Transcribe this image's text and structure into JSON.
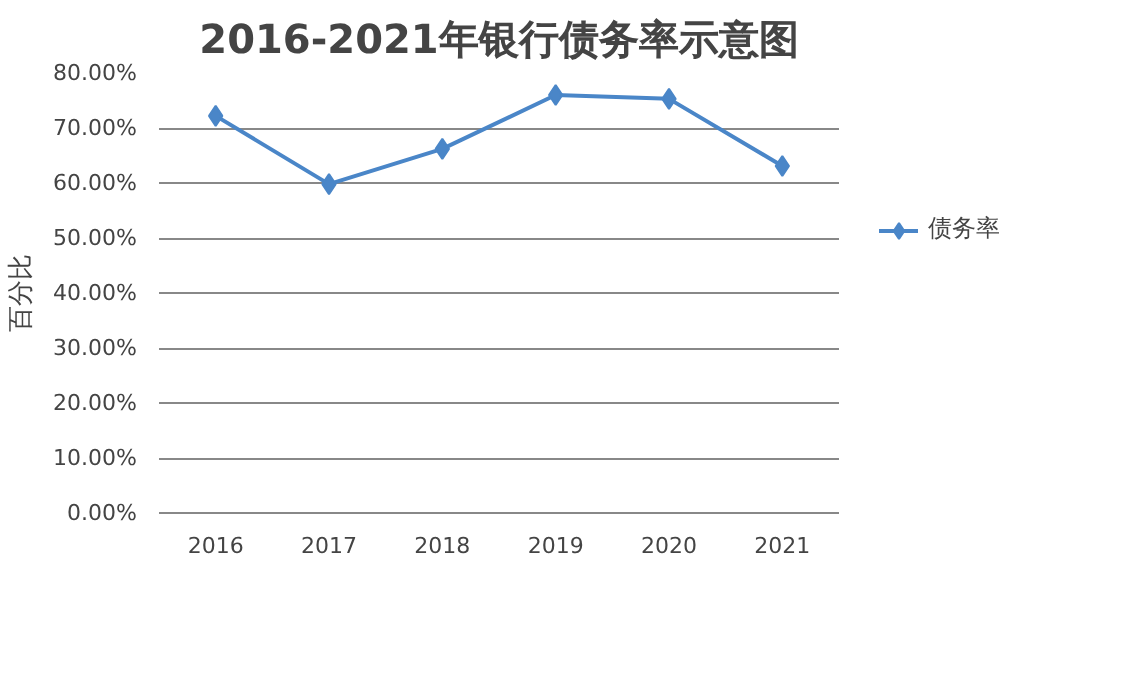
{
  "chart_data": {
    "type": "line",
    "title": "2016-2021年银行债务率示意图",
    "ylabel": "百分比",
    "categories": [
      "2016",
      "2017",
      "2018",
      "2019",
      "2020",
      "2021"
    ],
    "series": [
      {
        "name": "债务率",
        "color": "#4a86c8",
        "values": [
          72.2,
          59.8,
          66.2,
          76.0,
          75.3,
          63.1
        ]
      }
    ],
    "ylim": [
      0,
      80
    ],
    "yticks": [
      {
        "value": 0,
        "label": "0.00%"
      },
      {
        "value": 10,
        "label": "10.00%"
      },
      {
        "value": 20,
        "label": "20.00%"
      },
      {
        "value": 30,
        "label": "30.00%"
      },
      {
        "value": 40,
        "label": "40.00%"
      },
      {
        "value": 50,
        "label": "50.00%"
      },
      {
        "value": 60,
        "label": "60.00%"
      },
      {
        "value": 70,
        "label": "70.00%"
      },
      {
        "value": 80,
        "label": "80.00%"
      }
    ],
    "grid": "y",
    "legend": "right",
    "marker": "diamond",
    "line_style": "solid"
  }
}
